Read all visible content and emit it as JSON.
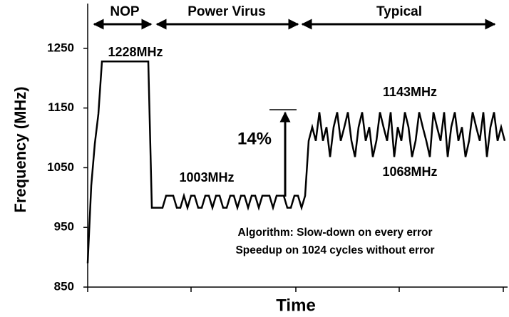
{
  "chart_data": {
    "type": "line",
    "xlabel": "Time",
    "ylabel": "Frequency (MHz)",
    "phases": [
      "NOP",
      "Power Virus",
      "Typical"
    ],
    "annotations": [
      "1228MHz",
      "1003MHz",
      "1143MHz",
      "1068MHz",
      "14%"
    ],
    "note": [
      "Algorithm: Slow-down on every error",
      "Speedup on 1024 cycles without error"
    ],
    "ylim": [
      850,
      1325
    ],
    "yticks": [
      850,
      950,
      1050,
      1150,
      1250
    ],
    "categories": [
      null,
      null,
      null,
      null,
      null,
      null,
      null,
      null,
      null,
      null,
      null,
      null,
      null,
      null,
      null,
      null,
      null,
      null,
      null,
      null,
      null,
      null,
      null,
      null,
      null,
      null,
      null,
      null,
      null,
      null,
      null,
      null,
      null,
      null,
      null,
      null,
      null,
      null,
      null,
      null,
      null,
      null,
      null,
      null,
      null,
      null,
      null,
      null,
      null,
      null,
      null,
      null,
      null,
      null,
      null,
      null,
      null,
      null,
      null,
      null,
      null,
      null,
      null,
      null,
      null,
      null,
      null,
      null,
      null,
      null,
      null,
      null,
      null,
      null,
      null,
      null,
      null,
      null,
      null,
      null,
      null,
      null,
      null,
      null,
      null,
      null,
      null,
      null,
      null,
      null,
      null,
      null,
      null,
      null,
      null,
      null,
      null,
      null,
      null,
      null,
      null,
      null,
      null,
      null,
      null,
      null,
      null,
      null,
      null,
      null,
      null,
      null,
      null,
      null,
      null,
      null,
      null,
      null
    ],
    "series": [
      {
        "color": "#000000",
        "values": [
          890,
          1020,
          1090,
          1140,
          1228,
          1228,
          1228,
          1228,
          1228,
          1228,
          1228,
          1228,
          1228,
          1228,
          1228,
          1228,
          1228,
          1228,
          983,
          983,
          983,
          983,
          1003,
          1003,
          1003,
          983,
          983,
          1003,
          983,
          1003,
          1003,
          983,
          983,
          1003,
          1003,
          983,
          1003,
          1003,
          983,
          983,
          1003,
          1003,
          983,
          1003,
          1003,
          983,
          1003,
          1003,
          983,
          1003,
          1003,
          1003,
          983,
          1003,
          1003,
          1003,
          983,
          983,
          1003,
          1003,
          983,
          1003,
          1095,
          1118,
          1095,
          1143,
          1095,
          1118,
          1068,
          1118,
          1143,
          1095,
          1118,
          1143,
          1095,
          1068,
          1118,
          1143,
          1095,
          1118,
          1068,
          1095,
          1143,
          1118,
          1095,
          1143,
          1068,
          1118,
          1095,
          1143,
          1118,
          1068,
          1095,
          1143,
          1118,
          1095,
          1068,
          1143,
          1118,
          1095,
          1143,
          1068,
          1118,
          1143,
          1095,
          1118,
          1068,
          1095,
          1143,
          1118,
          1095,
          1143,
          1068,
          1118,
          1143,
          1095,
          1118,
          1095
        ]
      }
    ]
  }
}
